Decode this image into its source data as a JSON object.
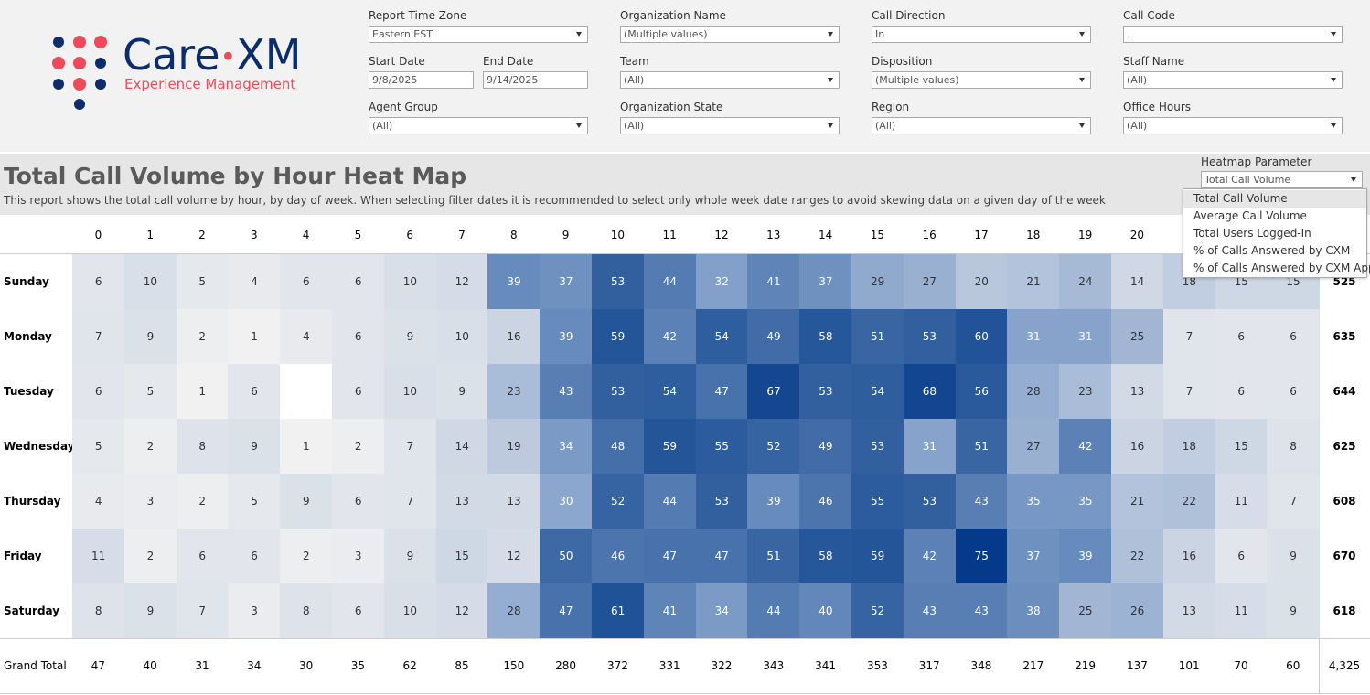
{
  "logo": {
    "brand": "Care",
    "brand_suffix": "XM",
    "tagline": "Experience Management"
  },
  "filters": [
    {
      "label": "Report Time Zone",
      "value": "Eastern EST"
    },
    {
      "label": "Organization Name",
      "value": "(Multiple values)"
    },
    {
      "label": "Call Direction",
      "value": "In"
    },
    {
      "label": "Call Code",
      "value": "."
    },
    {
      "label": "Start Date",
      "value": "9/8/2025"
    },
    {
      "label": "End Date",
      "value": "9/14/2025"
    },
    {
      "label": "Team",
      "value": "(All)"
    },
    {
      "label": "Disposition",
      "value": "(Multiple values)"
    },
    {
      "label": "Staff Name",
      "value": "(All)"
    },
    {
      "label": "Agent Group",
      "value": "(All)"
    },
    {
      "label": "Organization State",
      "value": "(All)"
    },
    {
      "label": "Region",
      "value": "(All)"
    },
    {
      "label": "Office Hours",
      "value": "(All)"
    }
  ],
  "header": {
    "title": "Total Call Volume by Hour Heat Map",
    "description": "This report shows the total call volume by hour, by day of week. When selecting filter dates it is recommended to select only whole week date ranges to avoid skewing data on a given day of the week"
  },
  "parameter": {
    "label": "Heatmap Parameter",
    "selected": "Total Call Volume",
    "options": [
      "Total Call Volume",
      "Average Call Volume",
      "Total Users Logged-In",
      "% of Calls Answered by CXM",
      "% of Calls Answered by CXM App"
    ]
  },
  "heatmap": {
    "hours": [
      0,
      1,
      2,
      3,
      4,
      5,
      6,
      7,
      8,
      9,
      10,
      11,
      12,
      13,
      14,
      15,
      16,
      17,
      18,
      19,
      20,
      null,
      null,
      null
    ],
    "rows": [
      {
        "day": "Sunday",
        "values": [
          6,
          10,
          5,
          4,
          6,
          6,
          10,
          12,
          39,
          37,
          53,
          44,
          32,
          41,
          37,
          29,
          27,
          20,
          21,
          24,
          14,
          18,
          15,
          15
        ],
        "total": 525
      },
      {
        "day": "Monday",
        "values": [
          7,
          9,
          2,
          1,
          4,
          6,
          9,
          10,
          16,
          39,
          59,
          42,
          54,
          49,
          58,
          51,
          53,
          60,
          31,
          31,
          25,
          7,
          6,
          6
        ],
        "total": 635
      },
      {
        "day": "Tuesday",
        "values": [
          6,
          5,
          1,
          6,
          null,
          6,
          10,
          9,
          23,
          43,
          53,
          54,
          47,
          67,
          53,
          54,
          68,
          56,
          28,
          23,
          13,
          7,
          6,
          6
        ],
        "total": 644
      },
      {
        "day": "Wednesday",
        "values": [
          5,
          2,
          8,
          9,
          1,
          2,
          7,
          14,
          19,
          34,
          48,
          59,
          55,
          52,
          49,
          53,
          31,
          51,
          27,
          42,
          16,
          18,
          15,
          8
        ],
        "total": 625
      },
      {
        "day": "Thursday",
        "values": [
          4,
          3,
          2,
          5,
          9,
          6,
          7,
          13,
          13,
          30,
          52,
          44,
          53,
          39,
          46,
          55,
          53,
          43,
          35,
          35,
          21,
          22,
          11,
          7
        ],
        "total": 608
      },
      {
        "day": "Friday",
        "values": [
          11,
          2,
          6,
          6,
          2,
          3,
          9,
          15,
          12,
          50,
          46,
          47,
          47,
          51,
          58,
          59,
          42,
          75,
          37,
          39,
          22,
          16,
          6,
          9
        ],
        "total": 670
      },
      {
        "day": "Saturday",
        "values": [
          8,
          9,
          7,
          3,
          8,
          6,
          10,
          12,
          28,
          47,
          61,
          41,
          34,
          44,
          40,
          52,
          43,
          43,
          38,
          25,
          26,
          13,
          11,
          9
        ],
        "total": 618
      }
    ],
    "grand_total": {
      "label": "Grand Total",
      "values": [
        47,
        40,
        31,
        34,
        30,
        35,
        62,
        85,
        150,
        280,
        372,
        331,
        322,
        343,
        341,
        353,
        317,
        348,
        217,
        219,
        137,
        101,
        70,
        60
      ],
      "total": "4,325"
    }
  }
}
